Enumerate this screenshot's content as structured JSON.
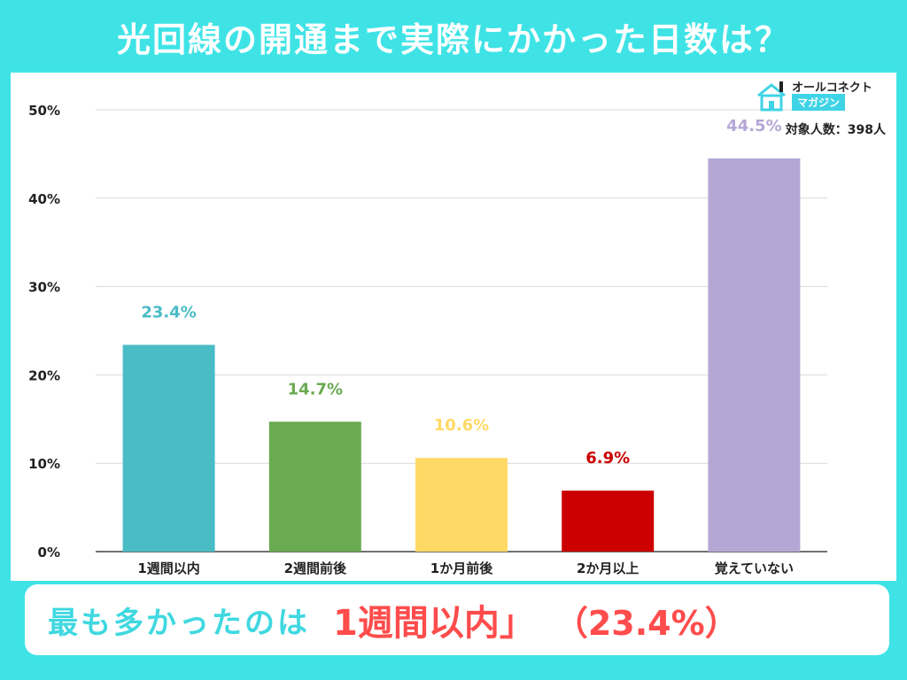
{
  "header": {
    "title": "光回線の開通まで実際にかかった日数は？"
  },
  "brand": {
    "name": "オールコネクト",
    "sub": "マガジン"
  },
  "respondents": "対象人数：398人",
  "summary": {
    "lead": "最も多かったのは",
    "highlight": "1週間以内」",
    "percent": "（23.4%）"
  },
  "chart_data": {
    "type": "bar",
    "categories": [
      "1週間以内",
      "2週間前後",
      "1か月前後",
      "2か月以上",
      "覚えていない"
    ],
    "values": [
      23.4,
      14.7,
      10.6,
      6.9,
      44.5
    ],
    "value_labels": [
      "23.4%",
      "14.7%",
      "10.6%",
      "6.9%",
      "44.5%"
    ],
    "colors": [
      "#4abcc6",
      "#6aaa50",
      "#ffd966",
      "#cc0000",
      "#b4a7d6"
    ],
    "ylim": [
      0,
      50
    ],
    "yticks": [
      0,
      10,
      20,
      30,
      40,
      50
    ],
    "ytick_labels": [
      "0%",
      "10%",
      "20%",
      "30%",
      "40%",
      "50%"
    ],
    "grid": true,
    "title": "",
    "xlabel": "",
    "ylabel": ""
  }
}
